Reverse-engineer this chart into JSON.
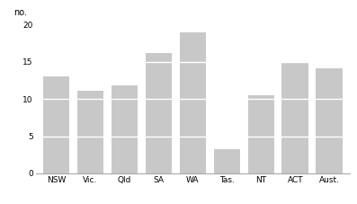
{
  "categories": [
    "NSW",
    "Vic.",
    "Qld",
    "SA",
    "WA",
    "Tas.",
    "NT",
    "ACT",
    "Aust."
  ],
  "values": [
    13.0,
    11.1,
    11.8,
    16.2,
    19.0,
    3.3,
    10.5,
    14.8,
    14.1
  ],
  "bar_color": "#c8c8c8",
  "ylabel": "no.",
  "ylim": [
    0,
    20
  ],
  "yticks": [
    0,
    5,
    10,
    15,
    20
  ],
  "white_lines": [
    5,
    10,
    15
  ],
  "grid_color": "#ffffff",
  "background_color": "#ffffff",
  "fig_bg_color": "#ffffff",
  "bar_width": 0.78,
  "tick_fontsize": 6.5,
  "ylabel_fontsize": 7,
  "bottom_line_color": "#aaaaaa",
  "left_spine_color": "#aaaaaa"
}
